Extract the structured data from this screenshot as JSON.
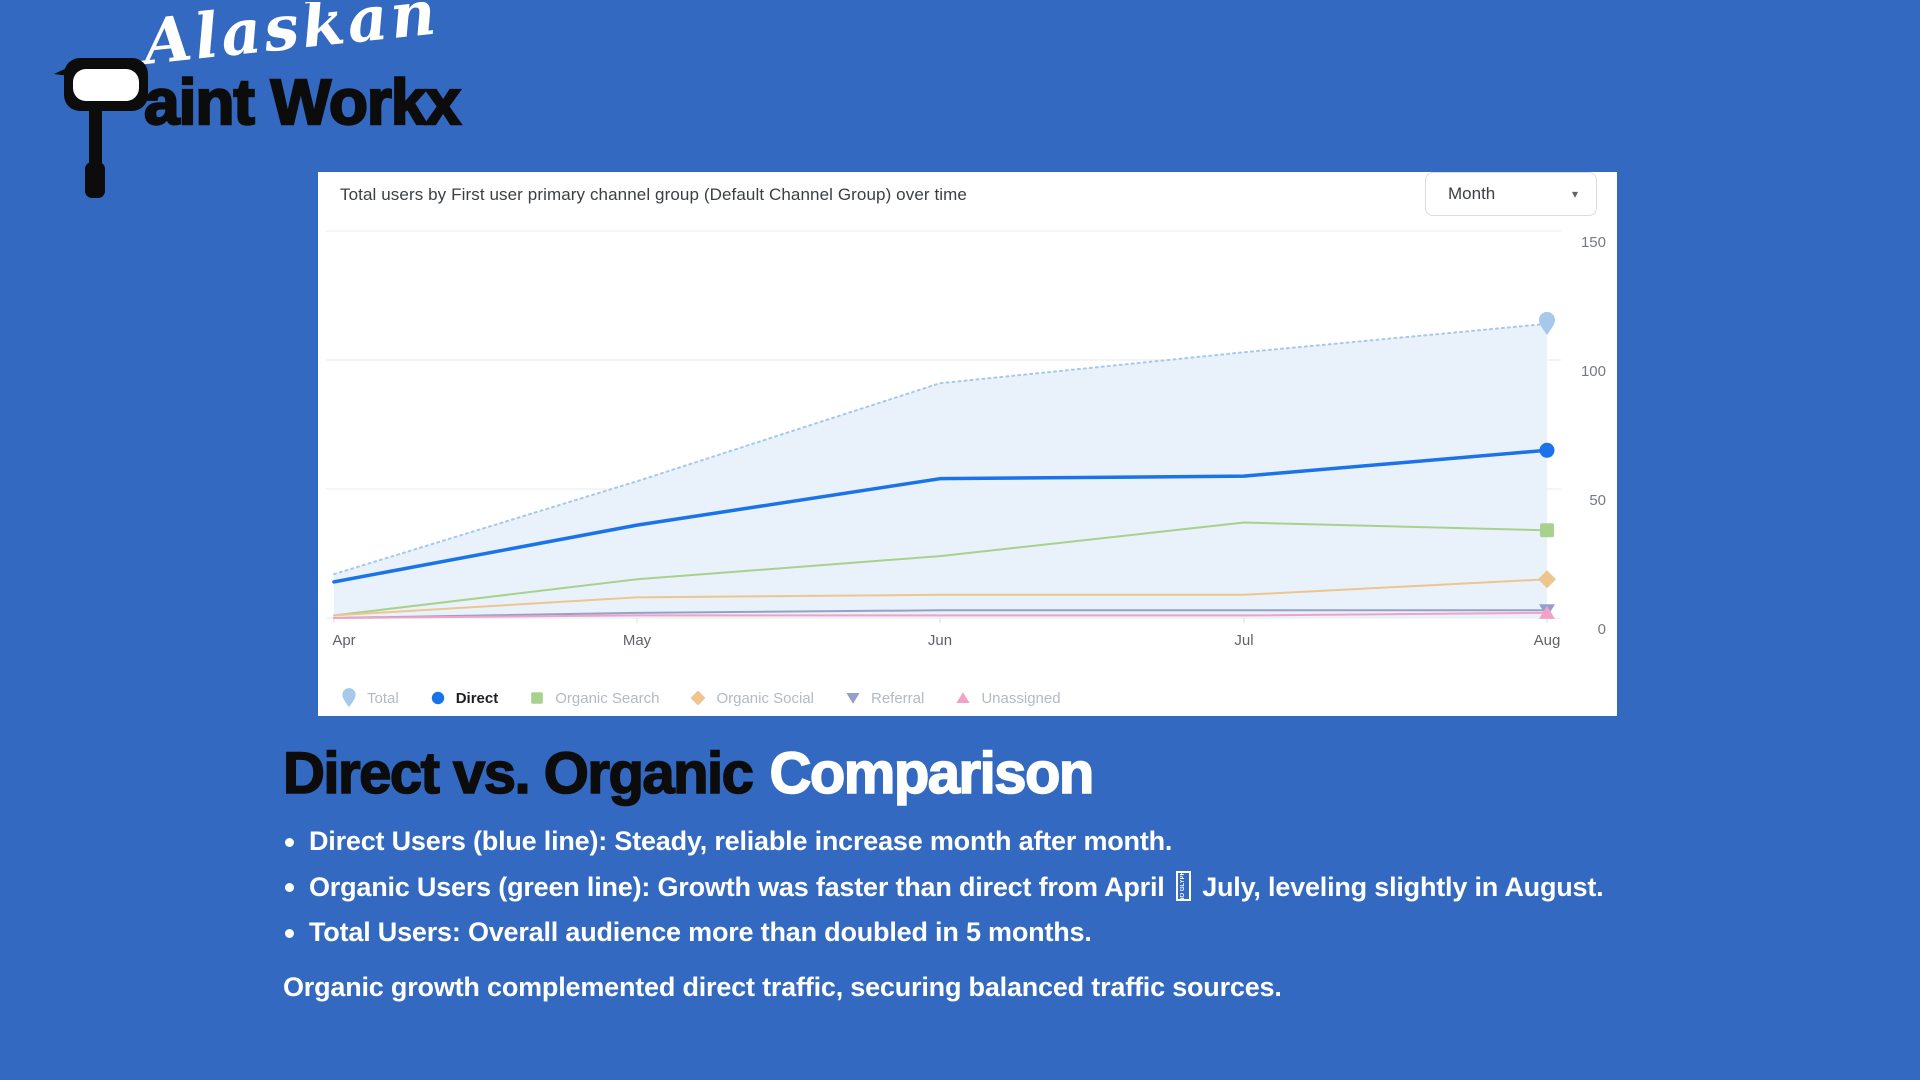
{
  "colors": {
    "background": "#3369c0",
    "card": "#ffffff",
    "grid": "#eceef0",
    "axis_text": "#757a80",
    "title_text": "#3c4043",
    "area_fill": "#e7f1fb"
  },
  "logo": {
    "script": "Alaskan",
    "main_rest": "aint Workx",
    "main_full": "Paint Workx",
    "icon": "paint-roller-p-icon"
  },
  "chart": {
    "title": "Total users by First user primary channel group (Default Channel Group) over time",
    "dropdown_value": "Month",
    "legend": [
      {
        "label": "Total",
        "shape": "pin",
        "color": "#a6c8ea",
        "active": false
      },
      {
        "label": "Direct",
        "shape": "circle",
        "color": "#1a73e8",
        "active": true
      },
      {
        "label": "Organic Search",
        "shape": "square",
        "color": "#a9d18e",
        "active": false
      },
      {
        "label": "Organic Social",
        "shape": "diamond",
        "color": "#edc58f",
        "active": false
      },
      {
        "label": "Referral",
        "shape": "triangle-down",
        "color": "#95a0c9",
        "active": false
      },
      {
        "label": "Unassigned",
        "shape": "triangle-up",
        "color": "#f2a3c5",
        "active": false
      }
    ]
  },
  "chart_data": {
    "type": "line",
    "title": "Total users by First user primary channel group (Default Channel Group) over time",
    "granularity": "Month",
    "x": [
      "Apr",
      "May",
      "Jun",
      "Jul",
      "Aug"
    ],
    "ylabel": "",
    "ylim": [
      0,
      150
    ],
    "y_ticks": [
      0,
      50,
      100,
      150
    ],
    "grid": true,
    "legend_position": "bottom",
    "series": [
      {
        "name": "Total",
        "values": [
          17,
          53,
          91,
          103,
          114
        ],
        "color": "#a6c8ea",
        "dash": "2 4",
        "width": 2,
        "marker": "pin",
        "area": "#e7f1fb"
      },
      {
        "name": "Direct",
        "values": [
          14,
          36,
          54,
          55,
          65
        ],
        "color": "#1a73e8",
        "dash": "",
        "width": 3.5,
        "marker": "circle",
        "area": ""
      },
      {
        "name": "Organic Search",
        "values": [
          1,
          15,
          24,
          37,
          34
        ],
        "color": "#a9d18e",
        "dash": "",
        "width": 2,
        "marker": "square",
        "area": ""
      },
      {
        "name": "Organic Social",
        "values": [
          1,
          8,
          9,
          9,
          15
        ],
        "color": "#edc58f",
        "dash": "",
        "width": 2,
        "marker": "diamond",
        "area": ""
      },
      {
        "name": "Referral",
        "values": [
          0,
          2,
          3,
          3,
          3
        ],
        "color": "#95a0c9",
        "dash": "",
        "width": 2,
        "marker": "triangle-down",
        "area": ""
      },
      {
        "name": "Unassigned",
        "values": [
          0,
          1,
          1,
          1,
          2
        ],
        "color": "#f2a3c5",
        "dash": "",
        "width": 2,
        "marker": "triangle-up",
        "area": ""
      }
    ]
  },
  "content": {
    "heading_black": "Direct vs. Organic",
    "heading_white": "Comparison",
    "bullets": [
      {
        "before": "Direct Users (blue line): Steady, reliable increase month after month.",
        "glyph": "",
        "after": ""
      },
      {
        "before": "Organic Users (green line): Growth was faster than direct from April",
        "glyph": "NO GLYPH",
        "after": "July, leveling slightly in August."
      },
      {
        "before": "Total Users: Overall audience more than doubled in 5 months.",
        "glyph": "",
        "after": ""
      }
    ],
    "footer": "Organic growth complemented direct traffic, securing balanced traffic sources."
  }
}
